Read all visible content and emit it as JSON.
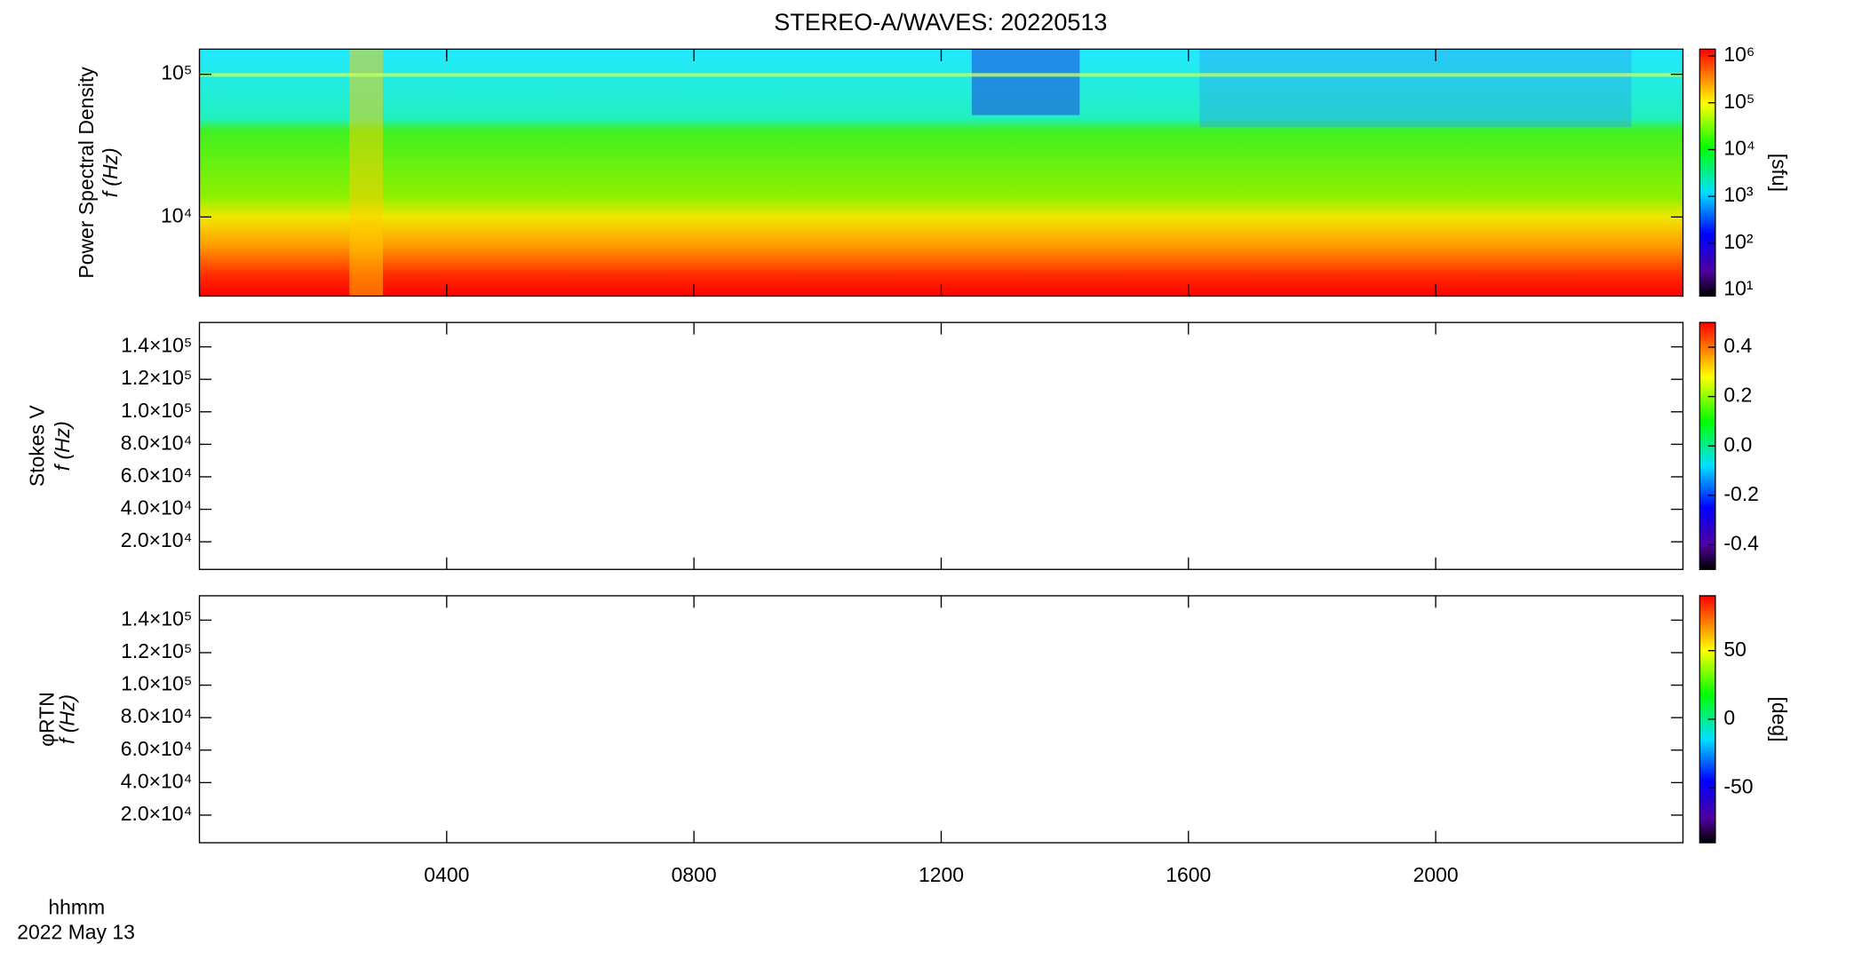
{
  "title": "STEREO-A/WAVES: 20220513",
  "x_axis": {
    "xlabel": "hhmm",
    "date": "2022 May 13",
    "xlim": [
      0,
      24
    ],
    "xticks": [
      {
        "value": 4,
        "label": "0400"
      },
      {
        "value": 8,
        "label": "0800"
      },
      {
        "value": 12,
        "label": "1200"
      },
      {
        "value": 16,
        "label": "1600"
      },
      {
        "value": 20,
        "label": "2000"
      }
    ]
  },
  "chart_data": [
    {
      "type": "spectrogram",
      "ylabel": "Power Spectral Density",
      "yunit": "f (Hz)",
      "ylog": true,
      "ylim": [
        2790,
        150000
      ],
      "yticks": [
        {
          "value": 10000,
          "label": "10⁴"
        },
        {
          "value": 100000,
          "label": "10⁵"
        }
      ],
      "colorbar": {
        "log": true,
        "lim": [
          7.4,
          1400000
        ],
        "label": "[sfu]",
        "ticks": [
          {
            "value": 10,
            "label": "10¹"
          },
          {
            "value": 100,
            "label": "10²"
          },
          {
            "value": 1000,
            "label": "10³"
          },
          {
            "value": 10000,
            "label": "10⁴"
          },
          {
            "value": 100000,
            "label": "10⁵"
          },
          {
            "value": 1000000,
            "label": "10⁶"
          }
        ]
      }
    },
    {
      "type": "spectrogram",
      "ylabel": "Stokes V",
      "yunit": "f (Hz)",
      "ylog": false,
      "ylim": [
        3000,
        155000
      ],
      "yticks": [
        {
          "value": 20000,
          "label": "2.0×10⁴"
        },
        {
          "value": 40000,
          "label": "4.0×10⁴"
        },
        {
          "value": 60000,
          "label": "6.0×10⁴"
        },
        {
          "value": 80000,
          "label": "8.0×10⁴"
        },
        {
          "value": 100000,
          "label": "1.0×10⁵"
        },
        {
          "value": 120000,
          "label": "1.2×10⁵"
        },
        {
          "value": 140000,
          "label": "1.4×10⁵"
        }
      ],
      "colorbar": {
        "log": false,
        "lim": [
          -0.5,
          0.5
        ],
        "ticks": [
          -0.4,
          -0.2,
          {
            "value": 0,
            "label": "0.0"
          },
          0.2,
          0.4
        ]
      }
    },
    {
      "type": "spectrogram",
      "ylabel": "φRTN",
      "yunit": "f (Hz)",
      "ylog": false,
      "ylim": [
        3000,
        155000
      ],
      "yticks": [
        {
          "value": 20000,
          "label": "2.0×10⁴"
        },
        {
          "value": 40000,
          "label": "4.0×10⁴"
        },
        {
          "value": 60000,
          "label": "6.0×10⁴"
        },
        {
          "value": 80000,
          "label": "8.0×10⁴"
        },
        {
          "value": 100000,
          "label": "1.0×10⁵"
        },
        {
          "value": 120000,
          "label": "1.2×10⁵"
        },
        {
          "value": 140000,
          "label": "1.4×10⁵"
        }
      ],
      "colorbar": {
        "log": false,
        "lim": [
          -90,
          90
        ],
        "label": "[deg]",
        "ticks": [
          -50,
          0,
          50
        ]
      }
    }
  ]
}
